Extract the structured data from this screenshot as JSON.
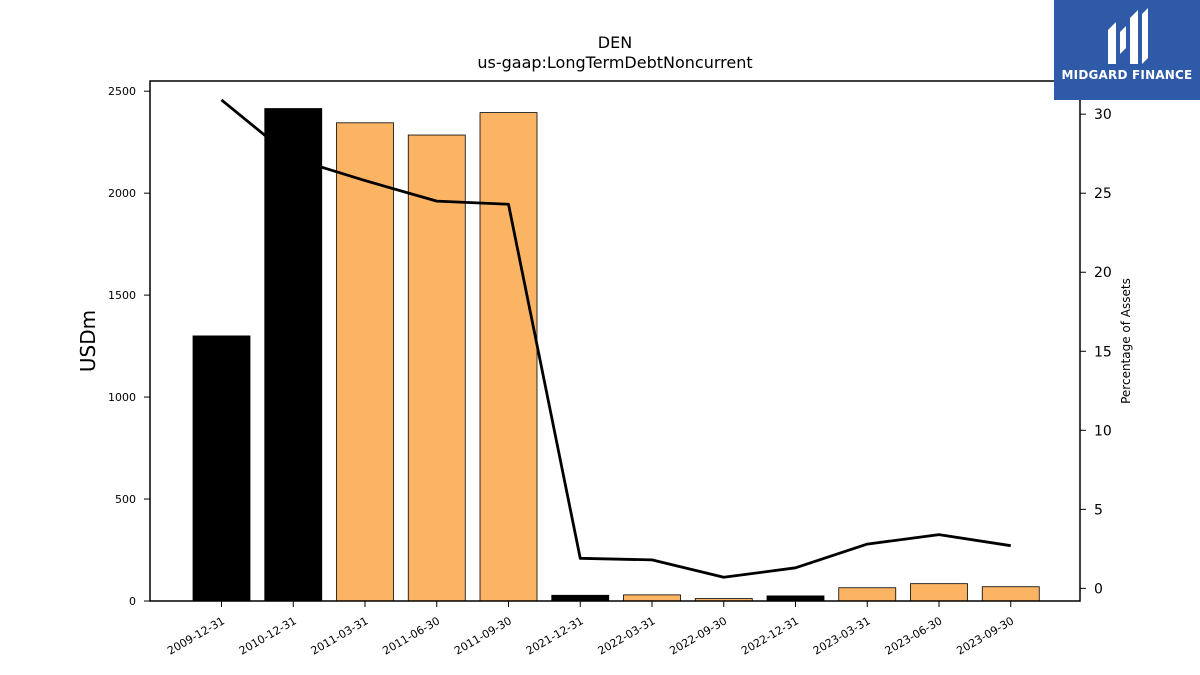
{
  "chart_data": {
    "type": "bar",
    "title": "DEN",
    "subtitle": "us-gaap:LongTermDebtNoncurrent",
    "ylabel": "USDm",
    "y2label": "Percentage of Assets",
    "categories": [
      "2009-12-31",
      "2010-12-31",
      "2011-03-31",
      "2011-06-30",
      "2011-09-30",
      "2021-12-31",
      "2022-03-31",
      "2022-09-30",
      "2022-12-31",
      "2023-03-31",
      "2023-06-30",
      "2023-09-30"
    ],
    "bar_colors": [
      "#000000",
      "#000000",
      "#fbb463",
      "#fbb463",
      "#fbb463",
      "#000000",
      "#fbb463",
      "#fbb463",
      "#000000",
      "#fbb463",
      "#fbb463",
      "#fbb463"
    ],
    "series": [
      {
        "values": [
          1300,
          2415,
          2345,
          2285,
          2395,
          28,
          30,
          12,
          25,
          65,
          85,
          70
        ]
      },
      {
        "axis": "right",
        "values": [
          30.9,
          27.2,
          25.8,
          24.5,
          24.3,
          1.9,
          1.8,
          0.7,
          1.3,
          2.8,
          3.4,
          2.7
        ]
      }
    ],
    "ylim": [
      0,
      2550
    ],
    "yticks": [
      0,
      500,
      1000,
      1500,
      2000,
      2500
    ],
    "y2lim": [
      -0.8,
      32.1
    ],
    "y2ticks": [
      0,
      5,
      10,
      15,
      20,
      25,
      30
    ],
    "grid": false
  },
  "logo": {
    "text": "MIDGARD FINANCE"
  }
}
